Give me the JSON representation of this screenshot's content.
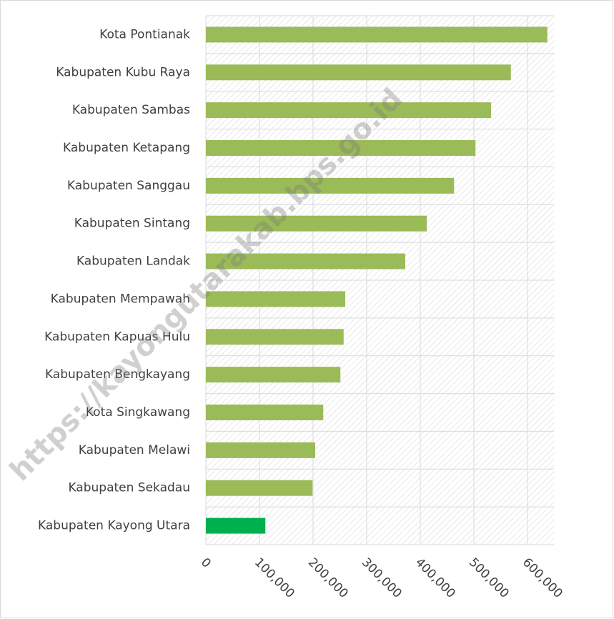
{
  "chart_data": {
    "type": "barh",
    "watermark": "https://kayongutarakab.bps.go.id",
    "categories": [
      "Kota Pontianak",
      "Kabupaten Kubu Raya",
      "Kabupaten Sambas",
      "Kabupaten Ketapang",
      "Kabupaten Sanggau",
      "Kabupaten Sintang",
      "Kabupaten Landak",
      "Kabupaten Mempawah",
      "Kabupaten Kapuas Hulu",
      "Kabupaten Bengkayang",
      "Kota Singkawang",
      "Kabupaten Melawi",
      "Kabupaten Sekadau",
      "Kabupaten Kayong Utara"
    ],
    "values": [
      637000,
      569000,
      532000,
      503000,
      463000,
      412000,
      372000,
      260000,
      257000,
      251000,
      219000,
      204000,
      199000,
      111000
    ],
    "colors": [
      "#9bbb59",
      "#9bbb59",
      "#9bbb59",
      "#9bbb59",
      "#9bbb59",
      "#9bbb59",
      "#9bbb59",
      "#9bbb59",
      "#9bbb59",
      "#9bbb59",
      "#9bbb59",
      "#9bbb59",
      "#9bbb59",
      "#00b050"
    ],
    "xlim": [
      0,
      650000
    ],
    "xticks": [
      0,
      {
        "value": 100000,
        "label": "100,000"
      },
      {
        "value": 200000,
        "label": "200,000"
      },
      {
        "value": 300000,
        "label": "300,000"
      },
      {
        "value": 400000,
        "label": "400,000"
      },
      {
        "value": 500000,
        "label": "500,000"
      },
      {
        "value": 600000,
        "label": "600,000"
      }
    ],
    "grid": true
  }
}
